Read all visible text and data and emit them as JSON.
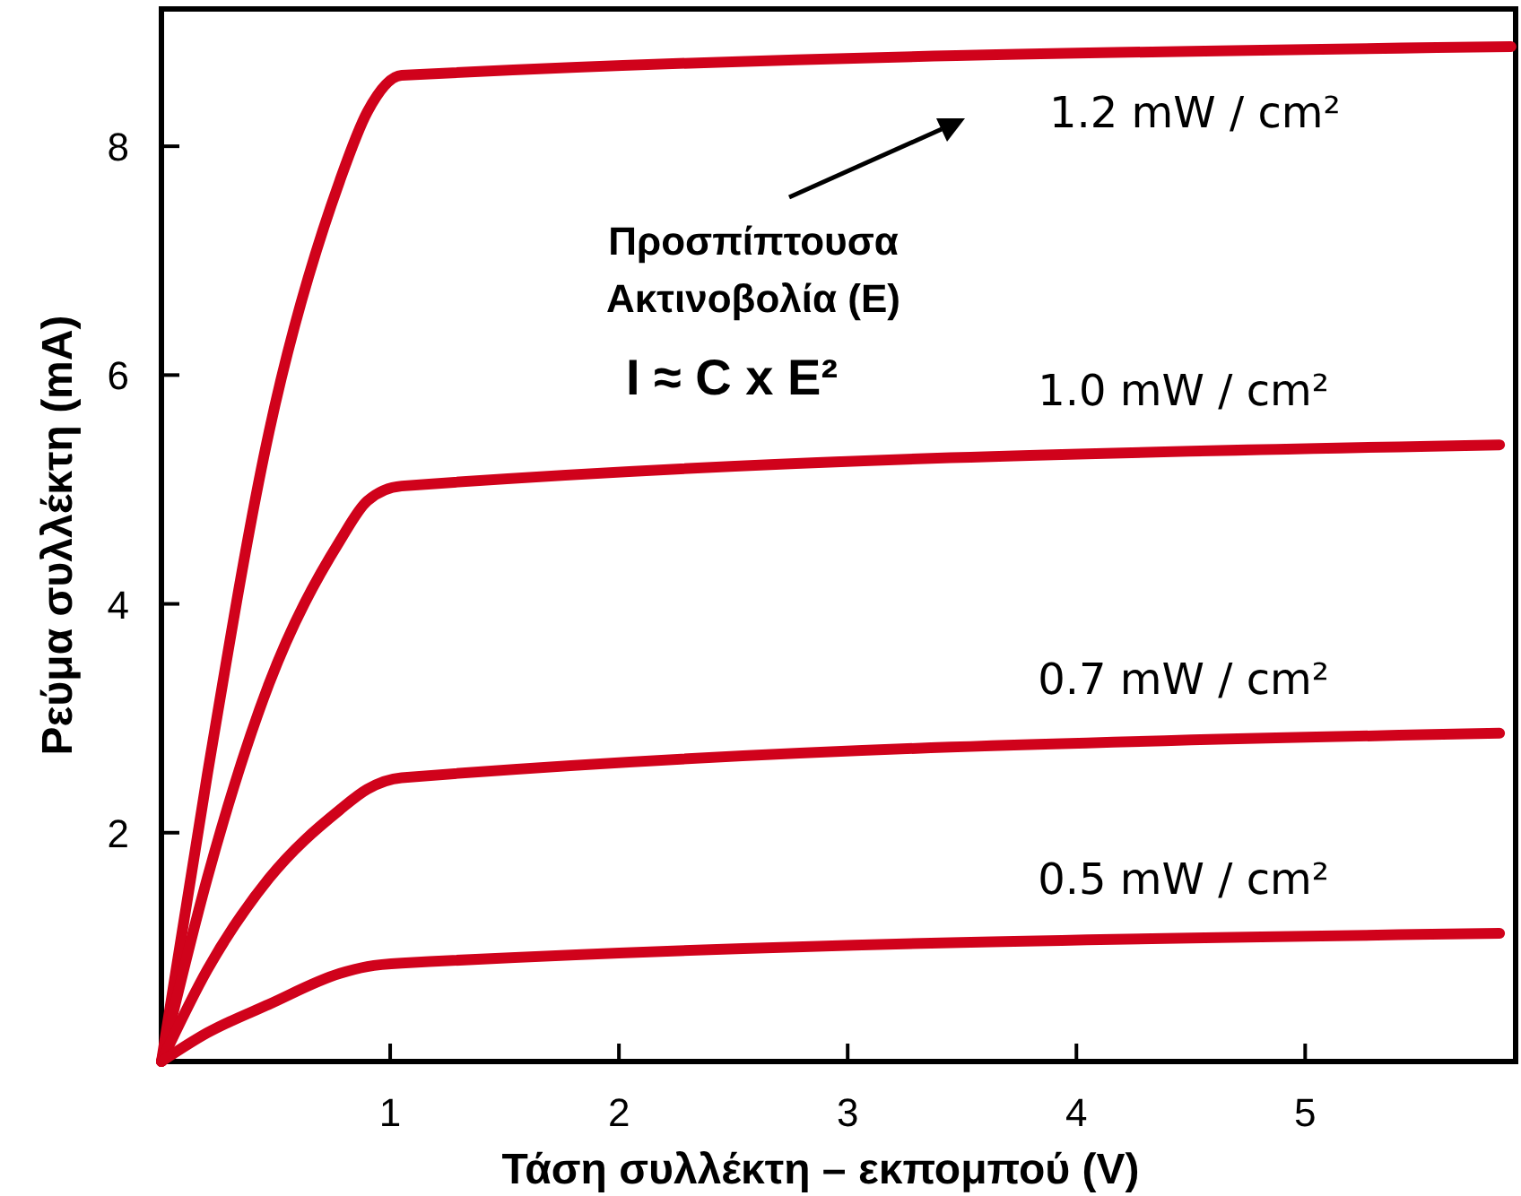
{
  "chart_data": {
    "type": "line",
    "xlabel": "Τάση συλλέκτη – εκπομπού (V)",
    "ylabel": "Ρεύμα συλλέκτη (mA)",
    "xlim": [
      0,
      5.92
    ],
    "ylim": [
      0,
      9.2
    ],
    "xticks": [
      1,
      2,
      3,
      4,
      5
    ],
    "yticks": [
      2,
      4,
      6,
      8
    ],
    "grid": false,
    "marker": "none",
    "line_style": "solid",
    "annotations": [
      "Προσπίπτουσα Ακτινοβολία (E)",
      "I ≈ C x E²"
    ],
    "series": [
      {
        "name": "1.2 mW / cm²",
        "color": "#d0021b",
        "x": [
          0,
          0.2,
          0.47,
          0.78,
          0.9,
          1.05,
          5.9
        ],
        "values": [
          0,
          2.5,
          5.5,
          7.7,
          8.3,
          8.62,
          8.87
        ]
      },
      {
        "name": "1.0 mW / cm²",
        "color": "#d0021b",
        "x": [
          0,
          0.2,
          0.47,
          0.78,
          0.9,
          1.05,
          5.85
        ],
        "values": [
          0,
          1.6,
          3.3,
          4.55,
          4.9,
          5.03,
          5.39
        ]
      },
      {
        "name": "0.7 mW / cm²",
        "color": "#d0021b",
        "x": [
          0,
          0.2,
          0.47,
          0.78,
          0.9,
          1.05,
          5.85
        ],
        "values": [
          0,
          0.8,
          1.6,
          2.2,
          2.38,
          2.48,
          2.87
        ]
      },
      {
        "name": "0.5 mW / cm²",
        "color": "#d0021b",
        "x": [
          0,
          0.2,
          0.47,
          0.78,
          0.9,
          1.05,
          5.85
        ],
        "values": [
          0,
          0.25,
          0.5,
          0.77,
          0.83,
          0.86,
          1.12
        ]
      }
    ]
  }
}
